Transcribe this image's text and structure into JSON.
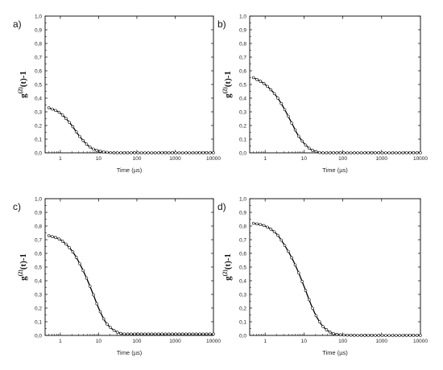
{
  "chart_data": [
    {
      "type": "scatter",
      "panel_label": "a)",
      "ylabel": "g(2)(t)-1",
      "ylabel_main": "g",
      "ylabel_sup": "(2)",
      "ylabel_rest": "(t)-1",
      "xlabel": "Time (µs)",
      "xscale": "log",
      "xlim": [
        0.4,
        10000
      ],
      "ylim": [
        0,
        1.0
      ],
      "x_ticks": [
        1,
        10,
        100,
        1000,
        10000
      ],
      "x_tick_labels": [
        "1",
        "10",
        "100",
        "1000",
        "10000"
      ],
      "y_ticks": [
        0,
        0.1,
        0.2,
        0.3,
        0.4,
        0.5,
        0.6,
        0.7,
        0.8,
        0.9,
        1.0
      ],
      "y_tick_labels": [
        "0,0",
        "0,1",
        "0,2",
        "0,3",
        "0,4",
        "0,5",
        "0,6",
        "0,7",
        "0,8",
        "0,9",
        "1,0"
      ],
      "x": [
        0.5,
        1,
        2,
        3,
        5,
        7,
        10,
        15,
        30,
        100,
        1000,
        10000
      ],
      "y": [
        0.33,
        0.29,
        0.2,
        0.13,
        0.06,
        0.03,
        0.015,
        0.005,
        0.0,
        0.0,
        0.0,
        0.0
      ]
    },
    {
      "type": "scatter",
      "panel_label": "b)",
      "ylabel": "g(2)(t)-1",
      "ylabel_main": "g",
      "ylabel_sup": "(2)",
      "ylabel_rest": "(t)-1",
      "xlabel": "Time (µs)",
      "xscale": "log",
      "xlim": [
        0.4,
        10000
      ],
      "ylim": [
        0,
        1.0
      ],
      "x_ticks": [
        1,
        10,
        100,
        1000,
        10000
      ],
      "x_tick_labels": [
        "1",
        "10",
        "100",
        "1000",
        "10000"
      ],
      "y_ticks": [
        0,
        0.1,
        0.2,
        0.3,
        0.4,
        0.5,
        0.6,
        0.7,
        0.8,
        0.9,
        1.0
      ],
      "y_tick_labels": [
        "0,0",
        "0,1",
        "0,2",
        "0,3",
        "0,4",
        "0,5",
        "0,6",
        "0,7",
        "0,8",
        "0,9",
        "1,0"
      ],
      "x": [
        0.5,
        1,
        2,
        3,
        5,
        7,
        10,
        15,
        20,
        30,
        100,
        1000,
        10000
      ],
      "y": [
        0.55,
        0.5,
        0.41,
        0.33,
        0.21,
        0.13,
        0.07,
        0.025,
        0.01,
        0.0,
        0.0,
        0.0,
        0.0
      ]
    },
    {
      "type": "scatter",
      "panel_label": "c)",
      "ylabel": "g(2)(t)-1",
      "ylabel_main": "g",
      "ylabel_sup": "(2)",
      "ylabel_rest": "(t)-1",
      "xlabel": "Time (µs)",
      "xscale": "log",
      "xlim": [
        0.4,
        10000
      ],
      "ylim": [
        0,
        1.0
      ],
      "x_ticks": [
        1,
        10,
        100,
        1000,
        10000
      ],
      "x_tick_labels": [
        "1",
        "10",
        "100",
        "1000",
        "10000"
      ],
      "y_ticks": [
        0,
        0.1,
        0.2,
        0.3,
        0.4,
        0.5,
        0.6,
        0.7,
        0.8,
        0.9,
        1.0
      ],
      "y_tick_labels": [
        "0,0",
        "0,1",
        "0,2",
        "0,3",
        "0,4",
        "0,5",
        "0,6",
        "0,7",
        "0,8",
        "0,9",
        "1,0"
      ],
      "x": [
        0.5,
        1,
        2,
        3,
        5,
        7,
        10,
        15,
        20,
        30,
        50,
        100,
        1000,
        10000
      ],
      "y": [
        0.73,
        0.7,
        0.62,
        0.54,
        0.41,
        0.31,
        0.2,
        0.1,
        0.06,
        0.025,
        0.01,
        0.01,
        0.01,
        0.01
      ]
    },
    {
      "type": "scatter",
      "panel_label": "d)",
      "ylabel": "g(2)(t)-1",
      "ylabel_main": "g",
      "ylabel_sup": "(2)",
      "ylabel_rest": "(t)-1",
      "xlabel": "Time (µs)",
      "xscale": "log",
      "xlim": [
        0.4,
        10000
      ],
      "ylim": [
        0,
        1.0
      ],
      "x_ticks": [
        1,
        10,
        100,
        1000,
        10000
      ],
      "x_tick_labels": [
        "1",
        "10",
        "100",
        "1000",
        "10000"
      ],
      "y_ticks": [
        0,
        0.1,
        0.2,
        0.3,
        0.4,
        0.5,
        0.6,
        0.7,
        0.8,
        0.9,
        1.0
      ],
      "y_tick_labels": [
        "0,0",
        "0,1",
        "0,2",
        "0,3",
        "0,4",
        "0,5",
        "0,6",
        "0,7",
        "0,8",
        "0,9",
        "1,0"
      ],
      "x": [
        0.5,
        1,
        2,
        3,
        5,
        7,
        10,
        15,
        20,
        30,
        50,
        70,
        100,
        1000,
        10000
      ],
      "y": [
        0.82,
        0.8,
        0.74,
        0.67,
        0.56,
        0.47,
        0.36,
        0.23,
        0.15,
        0.07,
        0.02,
        0.008,
        0.003,
        0.0,
        0.0
      ]
    }
  ]
}
